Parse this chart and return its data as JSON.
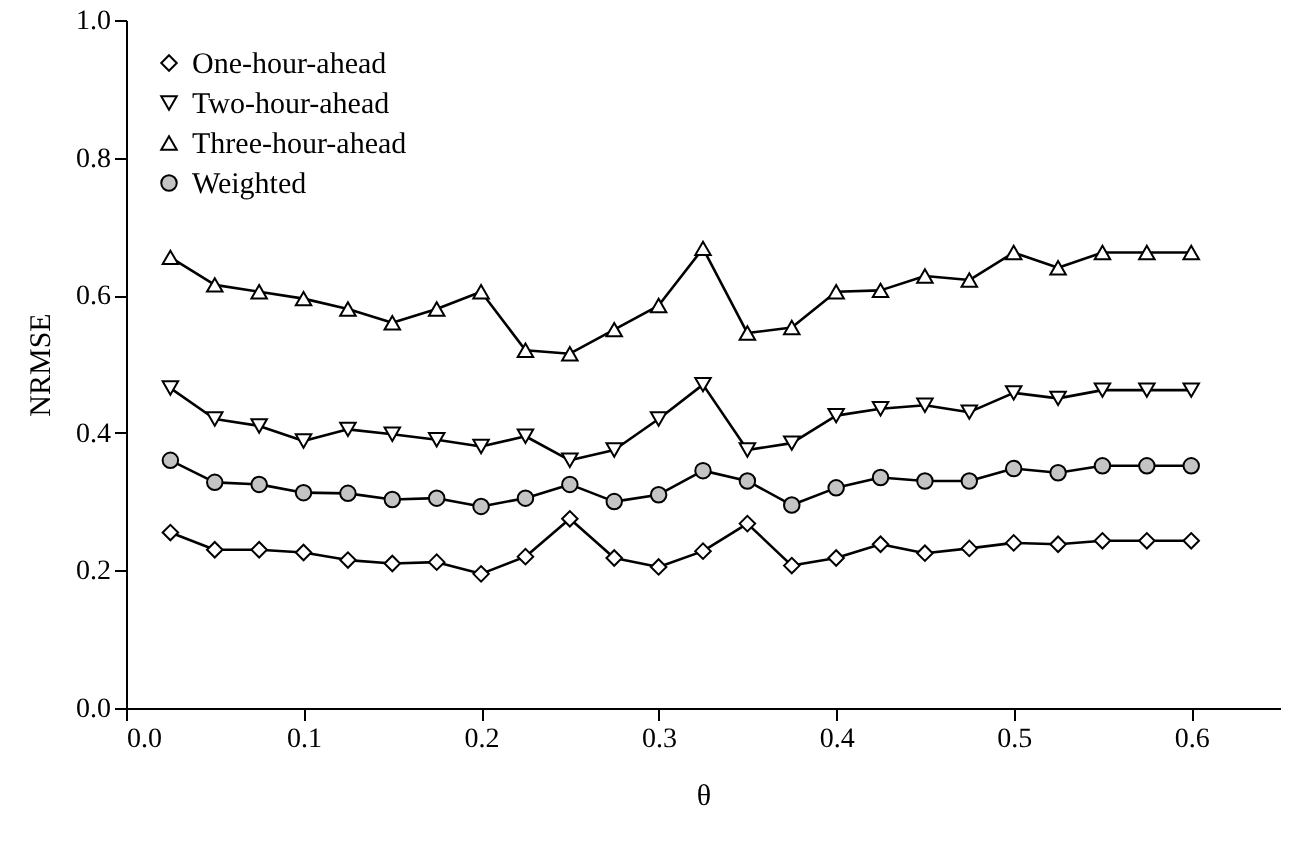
{
  "chart_data": {
    "type": "line",
    "xlabel": "θ",
    "ylabel": "NRMSE",
    "x": [
      0.025,
      0.05,
      0.075,
      0.1,
      0.125,
      0.15,
      0.175,
      0.2,
      0.225,
      0.25,
      0.275,
      0.3,
      0.325,
      0.35,
      0.375,
      0.4,
      0.425,
      0.45,
      0.475,
      0.5,
      0.525,
      0.55,
      0.575,
      0.6
    ],
    "series": [
      {
        "name": "One-hour-ahead",
        "color": "#000000",
        "marker": "diamond",
        "values": [
          0.255,
          0.23,
          0.23,
          0.226,
          0.215,
          0.21,
          0.212,
          0.195,
          0.22,
          0.275,
          0.218,
          0.205,
          0.228,
          0.268,
          0.207,
          0.218,
          0.238,
          0.225,
          0.232,
          0.24,
          0.238,
          0.243,
          0.243,
          0.243
        ]
      },
      {
        "name": "Two-hour-ahead",
        "color": "#000000",
        "marker": "triangle-down",
        "values": [
          0.465,
          0.42,
          0.41,
          0.388,
          0.405,
          0.398,
          0.39,
          0.38,
          0.395,
          0.36,
          0.375,
          0.42,
          0.47,
          0.375,
          0.385,
          0.425,
          0.435,
          0.44,
          0.43,
          0.458,
          0.45,
          0.462,
          0.462,
          0.462
        ]
      },
      {
        "name": "Three-hour-ahead",
        "color": "#000000",
        "marker": "triangle",
        "values": [
          0.655,
          0.615,
          0.605,
          0.595,
          0.58,
          0.56,
          0.58,
          0.605,
          0.52,
          0.515,
          0.55,
          0.585,
          0.668,
          0.545,
          0.553,
          0.605,
          0.607,
          0.628,
          0.622,
          0.662,
          0.64,
          0.662,
          0.662,
          0.662
        ]
      },
      {
        "name": "Weighted",
        "color": "#000000",
        "marker": "circle",
        "values": [
          0.36,
          0.328,
          0.325,
          0.313,
          0.312,
          0.303,
          0.305,
          0.293,
          0.305,
          0.325,
          0.3,
          0.31,
          0.345,
          0.33,
          0.295,
          0.32,
          0.335,
          0.33,
          0.33,
          0.348,
          0.342,
          0.352,
          0.352,
          0.352
        ]
      }
    ],
    "xlim": [
      0,
      0.65
    ],
    "xticks": [
      {
        "value": 0,
        "label": "0.0"
      },
      0.1,
      0.2,
      0.3,
      0.4,
      0.5,
      0.6
    ],
    "ylim": [
      0,
      1
    ],
    "yticks": [
      {
        "value": 0,
        "label": "0.0"
      },
      0.2,
      0.4,
      0.6,
      0.8,
      {
        "value": 1,
        "label": "1.0"
      }
    ],
    "legend": "top left",
    "grid": false,
    "line_style": "solid"
  }
}
